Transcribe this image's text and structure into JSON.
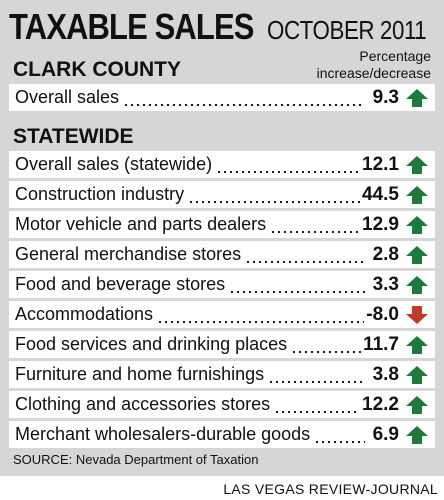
{
  "header": {
    "title": "TAXABLE SALES",
    "subtitle": "OCTOBER 2011"
  },
  "clark": {
    "title": "CLARK COUNTY",
    "note_line1": "Percentage",
    "note_line2": "increase/decrease",
    "rows": [
      {
        "label": "Overall sales",
        "value": "9.3",
        "direction": "up"
      }
    ]
  },
  "statewide": {
    "title": "STATEWIDE",
    "rows": [
      {
        "label": "Overall sales (statewide)",
        "value": "12.1",
        "direction": "up"
      },
      {
        "label": "Construction industry",
        "value": "44.5",
        "direction": "up"
      },
      {
        "label": "Motor vehicle and parts dealers",
        "value": "12.9",
        "direction": "up"
      },
      {
        "label": "General merchandise stores",
        "value": "2.8",
        "direction": "up"
      },
      {
        "label": "Food and beverage stores",
        "value": "3.3",
        "direction": "up"
      },
      {
        "label": "Accommodations",
        "value": "-8.0",
        "direction": "down"
      },
      {
        "label": "Food services and drinking places",
        "value": "11.7",
        "direction": "up"
      },
      {
        "label": "Furniture and home furnishings",
        "value": "3.8",
        "direction": "up"
      },
      {
        "label": "Clothing and accessories stores",
        "value": "12.2",
        "direction": "up"
      },
      {
        "label": "Merchant wholesalers-durable goods",
        "value": "6.9",
        "direction": "up"
      }
    ]
  },
  "source": "SOURCE: Nevada Department of Taxation",
  "credit": "LAS VEGAS REVIEW-JOURNAL",
  "colors": {
    "up": "#1f7a3a",
    "down": "#c0392b",
    "panel": "#d6d6d6"
  }
}
